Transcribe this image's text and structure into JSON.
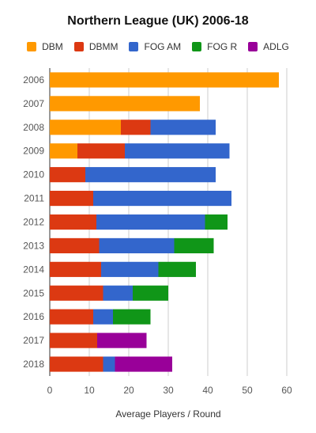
{
  "chart_data": {
    "type": "bar",
    "orientation": "horizontal",
    "stacked": true,
    "title": "Northern League (UK) 2006-18",
    "xlabel": "Average Players / Round",
    "ylabel": "",
    "xlim": [
      0,
      60
    ],
    "xticks": [
      0,
      10,
      20,
      30,
      40,
      50,
      60
    ],
    "grid": true,
    "legend_position": "top",
    "categories": [
      "2006",
      "2007",
      "2008",
      "2009",
      "2010",
      "2011",
      "2012",
      "2013",
      "2014",
      "2015",
      "2016",
      "2017",
      "2018"
    ],
    "series": [
      {
        "name": "DBM",
        "color": "#ff9900",
        "values": [
          58,
          38,
          18,
          7,
          0,
          0,
          0,
          0,
          0,
          0,
          0,
          0,
          0
        ]
      },
      {
        "name": "DBMM",
        "color": "#dc3912",
        "values": [
          0,
          0,
          7.5,
          12,
          9,
          11,
          11.8,
          12.5,
          13,
          13.5,
          11,
          12,
          13.5
        ]
      },
      {
        "name": "FOG AM",
        "color": "#3366cc",
        "values": [
          0,
          0,
          16.5,
          26.5,
          33,
          35,
          27.5,
          19,
          14.5,
          7.5,
          5,
          0,
          3
        ]
      },
      {
        "name": "FOG R",
        "color": "#109618",
        "values": [
          0,
          0,
          0,
          0,
          0,
          0,
          5.7,
          10,
          9.5,
          9,
          9.5,
          0,
          0
        ]
      },
      {
        "name": "ADLG",
        "color": "#990099",
        "values": [
          0,
          0,
          0,
          0,
          0,
          0,
          0,
          0,
          0,
          0,
          0,
          12.5,
          14.5
        ]
      }
    ]
  }
}
